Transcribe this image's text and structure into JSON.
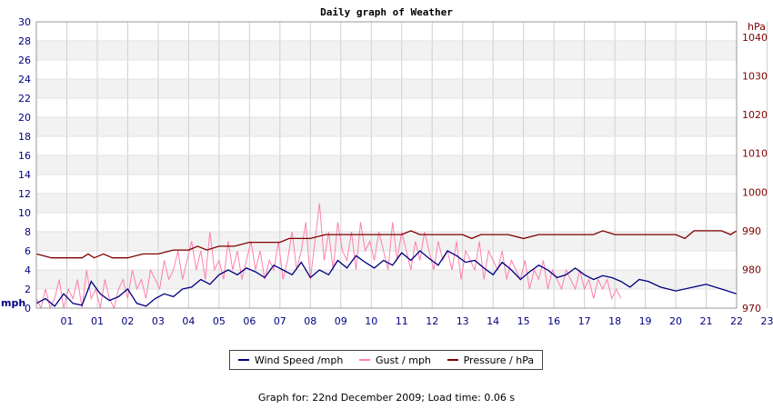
{
  "chart_data": {
    "type": "line",
    "title": "Daily graph of Weather",
    "x_tick_labels": [
      "01",
      "01",
      "02",
      "03",
      "04",
      "05",
      "06",
      "07",
      "08",
      "09",
      "10",
      "11",
      "12",
      "13",
      "14",
      "15",
      "16",
      "17",
      "18",
      "19",
      "20",
      "21",
      "22",
      "23"
    ],
    "y_left": {
      "unit_label": "mph",
      "range": [
        0,
        30
      ],
      "ticks": [
        0,
        2,
        4,
        6,
        8,
        10,
        12,
        14,
        16,
        18,
        20,
        22,
        24,
        26,
        28,
        30
      ]
    },
    "y_right": {
      "unit_label": "hPa",
      "range": [
        970,
        1044
      ],
      "ticks": [
        970,
        980,
        990,
        1000,
        1010,
        1020,
        1030,
        1040
      ]
    },
    "grid": true,
    "series": [
      {
        "name": "Wind Speed /mph",
        "axis": "left",
        "color": "#000080",
        "x": [
          0,
          0.3,
          0.6,
          0.9,
          1.2,
          1.5,
          1.8,
          2.1,
          2.4,
          2.7,
          3.0,
          3.3,
          3.6,
          3.9,
          4.2,
          4.5,
          4.8,
          5.1,
          5.4,
          5.7,
          6.0,
          6.3,
          6.6,
          6.9,
          7.2,
          7.5,
          7.8,
          8.1,
          8.4,
          8.7,
          9.0,
          9.3,
          9.6,
          9.9,
          10.2,
          10.5,
          10.8,
          11.1,
          11.4,
          11.7,
          12.0,
          12.3,
          12.6,
          12.9,
          13.2,
          13.5,
          13.8,
          14.1,
          14.4,
          14.7,
          15.0,
          15.3,
          15.6,
          15.9,
          16.2,
          16.5,
          16.8,
          17.1,
          17.4,
          17.7,
          18.0,
          18.3,
          18.6,
          18.9,
          19.2,
          19.5,
          19.8,
          20.1,
          20.5,
          21.0,
          22.0,
          23.0
        ],
        "values": [
          0.5,
          1.0,
          0.2,
          1.5,
          0.5,
          0.3,
          2.8,
          1.5,
          0.8,
          1.2,
          2.0,
          0.5,
          0.2,
          1.0,
          1.5,
          1.2,
          2.0,
          2.2,
          3.0,
          2.5,
          3.5,
          4.0,
          3.5,
          4.2,
          3.8,
          3.2,
          4.5,
          4.0,
          3.5,
          4.8,
          3.2,
          4.0,
          3.5,
          5.0,
          4.2,
          5.5,
          4.8,
          4.2,
          5.0,
          4.5,
          5.8,
          5.0,
          6.0,
          5.2,
          4.5,
          6.0,
          5.5,
          4.8,
          5.0,
          4.2,
          3.5,
          4.8,
          4.0,
          3.0,
          3.8,
          4.5,
          4.0,
          3.2,
          3.5,
          4.2,
          3.5,
          3.0,
          3.4,
          3.2,
          2.8,
          2.2,
          3.0,
          2.8,
          2.2,
          1.8,
          2.5,
          1.5
        ]
      },
      {
        "name": "Gust / mph",
        "axis": "left",
        "color": "#ff80b0",
        "x": [
          0,
          0.15,
          0.3,
          0.45,
          0.6,
          0.75,
          0.9,
          1.05,
          1.2,
          1.35,
          1.5,
          1.65,
          1.8,
          1.95,
          2.1,
          2.25,
          2.4,
          2.55,
          2.7,
          2.85,
          3.0,
          3.15,
          3.3,
          3.45,
          3.6,
          3.75,
          3.9,
          4.05,
          4.2,
          4.35,
          4.5,
          4.65,
          4.8,
          4.95,
          5.1,
          5.25,
          5.4,
          5.55,
          5.7,
          5.85,
          6.0,
          6.15,
          6.3,
          6.45,
          6.6,
          6.75,
          6.9,
          7.05,
          7.2,
          7.35,
          7.5,
          7.65,
          7.8,
          7.95,
          8.1,
          8.25,
          8.4,
          8.55,
          8.7,
          8.85,
          9.0,
          9.15,
          9.3,
          9.45,
          9.6,
          9.75,
          9.9,
          10.05,
          10.2,
          10.35,
          10.5,
          10.65,
          10.8,
          10.95,
          11.1,
          11.25,
          11.4,
          11.55,
          11.7,
          11.85,
          12.0,
          12.15,
          12.3,
          12.45,
          12.6,
          12.75,
          12.9,
          13.05,
          13.2,
          13.35,
          13.5,
          13.65,
          13.8,
          13.95,
          14.1,
          14.25,
          14.4,
          14.55,
          14.7,
          14.85,
          15.0,
          15.15,
          15.3,
          15.45,
          15.6,
          15.75,
          15.9,
          16.05,
          16.2,
          16.35,
          16.5,
          16.65,
          16.8,
          16.95,
          17.1,
          17.25,
          17.4,
          17.55,
          17.7,
          17.85,
          18.0,
          18.15,
          18.3,
          18.45,
          18.6,
          18.75,
          18.9,
          19.05,
          19.2
        ],
        "values": [
          1,
          0,
          2,
          0,
          1,
          3,
          0,
          2,
          1,
          3,
          0,
          4,
          1,
          2,
          0,
          3,
          1,
          0,
          2,
          3,
          1,
          4,
          2,
          3,
          1,
          4,
          3,
          2,
          5,
          3,
          4,
          6,
          3,
          5,
          7,
          4,
          6,
          3,
          8,
          4,
          5,
          3,
          7,
          4,
          6,
          3,
          5,
          7,
          4,
          6,
          3,
          5,
          4,
          7,
          3,
          5,
          8,
          4,
          6,
          9,
          3,
          7,
          11,
          5,
          8,
          4,
          9,
          6,
          5,
          8,
          4,
          9,
          6,
          7,
          5,
          8,
          6,
          4,
          9,
          5,
          8,
          6,
          4,
          7,
          5,
          8,
          6,
          4,
          7,
          5,
          6,
          4,
          7,
          3,
          6,
          5,
          4,
          7,
          3,
          6,
          5,
          4,
          6,
          3,
          5,
          4,
          3,
          5,
          2,
          4,
          3,
          5,
          2,
          4,
          3,
          2,
          4,
          3,
          2,
          4,
          2,
          3,
          1,
          3,
          2,
          3,
          1,
          2,
          1
        ]
      },
      {
        "name": "Pressure / hPa",
        "axis": "right",
        "color": "#800000",
        "x": [
          0,
          0.5,
          1.0,
          1.5,
          1.7,
          1.9,
          2.2,
          2.5,
          3.0,
          3.5,
          4.0,
          4.5,
          5.0,
          5.3,
          5.6,
          6.0,
          6.5,
          7.0,
          7.5,
          8.0,
          8.3,
          8.6,
          9.0,
          9.5,
          10.0,
          10.5,
          11.0,
          11.5,
          12.0,
          12.3,
          12.6,
          13.0,
          13.5,
          14.0,
          14.3,
          14.6,
          15.0,
          15.5,
          16.0,
          16.5,
          17.0,
          17.5,
          18.0,
          18.3,
          18.6,
          19.0,
          19.5,
          20.0,
          20.5,
          21.0,
          21.3,
          21.6,
          22.0,
          22.5,
          22.8,
          23.0
        ],
        "values": [
          984,
          983,
          983,
          983,
          984,
          983,
          984,
          983,
          983,
          984,
          984,
          985,
          985,
          986,
          985,
          986,
          986,
          987,
          987,
          987,
          988,
          988,
          988,
          989,
          989,
          989,
          989,
          989,
          989,
          990,
          989,
          989,
          989,
          989,
          988,
          989,
          989,
          989,
          988,
          989,
          989,
          989,
          989,
          989,
          990,
          989,
          989,
          989,
          989,
          989,
          988,
          990,
          990,
          990,
          989,
          990
        ]
      }
    ]
  },
  "legend": {
    "wind_label": "Wind Speed /mph",
    "gust_label": "Gust / mph",
    "pressure_label": "Pressure / hPa"
  },
  "footer": "Graph for: 22nd December 2009; Load time: 0.06 s"
}
